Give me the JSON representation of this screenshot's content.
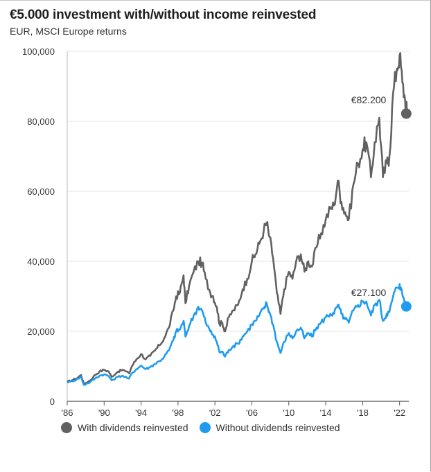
{
  "chart_data": {
    "type": "line",
    "title": "€5.000 investment with/without income reinvested",
    "subtitle": "EUR, MSCI Europe returns",
    "xlabel": "",
    "ylabel": "",
    "xlim": [
      1986,
      2023
    ],
    "ylim": [
      0,
      100000
    ],
    "grid": "horizontal",
    "yticks": [
      0,
      20000,
      40000,
      60000,
      80000,
      100000
    ],
    "ytick_labels": [
      "0",
      "20,000",
      "40,000",
      "60,000",
      "80,000",
      "100,000"
    ],
    "xticks": [
      1986,
      1990,
      1994,
      1998,
      2002,
      2006,
      2010,
      2014,
      2018,
      2022
    ],
    "xtick_labels": [
      "'86",
      "'90",
      "'94",
      "'98",
      "'02",
      "'06",
      "'10",
      "'14",
      "'18",
      "'22"
    ],
    "legend_position": "bottom",
    "series": [
      {
        "name": "With dividends reinvested",
        "color": "#616161",
        "end_label": "€82.200",
        "end_value": 82200,
        "points": [
          [
            1986.0,
            5500
          ],
          [
            1986.5,
            6000
          ],
          [
            1987.0,
            6500
          ],
          [
            1987.5,
            7500
          ],
          [
            1987.8,
            5000
          ],
          [
            1988.5,
            6000
          ],
          [
            1989.0,
            7500
          ],
          [
            1989.5,
            8500
          ],
          [
            1990.0,
            9000
          ],
          [
            1990.5,
            8500
          ],
          [
            1990.8,
            7000
          ],
          [
            1991.5,
            8500
          ],
          [
            1992.0,
            9000
          ],
          [
            1992.7,
            8000
          ],
          [
            1993.0,
            10000
          ],
          [
            1993.5,
            12000
          ],
          [
            1994.0,
            13500
          ],
          [
            1994.5,
            12000
          ],
          [
            1995.0,
            13000
          ],
          [
            1995.5,
            14500
          ],
          [
            1996.0,
            16000
          ],
          [
            1996.5,
            18000
          ],
          [
            1997.0,
            21000
          ],
          [
            1997.5,
            26000
          ],
          [
            1997.8,
            30000
          ],
          [
            1998.2,
            31000
          ],
          [
            1998.6,
            36000
          ],
          [
            1998.8,
            28000
          ],
          [
            1999.2,
            33000
          ],
          [
            1999.7,
            37000
          ],
          [
            2000.2,
            40000
          ],
          [
            2000.6,
            39500
          ],
          [
            2001.0,
            35000
          ],
          [
            2001.5,
            31000
          ],
          [
            2001.8,
            30000
          ],
          [
            2002.2,
            27000
          ],
          [
            2002.5,
            22000
          ],
          [
            2002.8,
            22500
          ],
          [
            2003.1,
            20000
          ],
          [
            2003.5,
            24000
          ],
          [
            2004.0,
            26000
          ],
          [
            2004.5,
            27500
          ],
          [
            2005.0,
            32000
          ],
          [
            2005.5,
            35000
          ],
          [
            2006.0,
            40000
          ],
          [
            2006.4,
            42000
          ],
          [
            2006.8,
            45000
          ],
          [
            2007.3,
            49000
          ],
          [
            2007.6,
            51000
          ],
          [
            2007.9,
            47000
          ],
          [
            2008.3,
            41000
          ],
          [
            2008.7,
            31000
          ],
          [
            2009.1,
            25000
          ],
          [
            2009.5,
            32000
          ],
          [
            2010.0,
            37000
          ],
          [
            2010.4,
            35000
          ],
          [
            2010.8,
            40000
          ],
          [
            2011.3,
            42000
          ],
          [
            2011.7,
            37000
          ],
          [
            2012.1,
            40000
          ],
          [
            2012.5,
            38500
          ],
          [
            2013.0,
            44000
          ],
          [
            2013.5,
            48000
          ],
          [
            2014.0,
            52000
          ],
          [
            2014.5,
            55000
          ],
          [
            2014.9,
            56000
          ],
          [
            2015.3,
            63000
          ],
          [
            2015.7,
            57000
          ],
          [
            2016.1,
            54000
          ],
          [
            2016.5,
            52000
          ],
          [
            2017.0,
            62000
          ],
          [
            2017.5,
            68000
          ],
          [
            2018.0,
            72000
          ],
          [
            2018.4,
            74000
          ],
          [
            2018.9,
            64000
          ],
          [
            2019.3,
            74000
          ],
          [
            2019.8,
            81000
          ],
          [
            2020.2,
            64000
          ],
          [
            2020.6,
            68000
          ],
          [
            2020.9,
            70000
          ],
          [
            2021.3,
            88000
          ],
          [
            2021.7,
            95000
          ],
          [
            2022.0,
            99000
          ],
          [
            2022.3,
            91000
          ],
          [
            2022.6,
            86000
          ],
          [
            2022.8,
            82200
          ]
        ]
      },
      {
        "name": "Without dividends reinvested",
        "color": "#1f9bf0",
        "end_label": "€27.100",
        "end_value": 27100,
        "points": [
          [
            1986.0,
            5500
          ],
          [
            1986.5,
            5800
          ],
          [
            1987.0,
            6200
          ],
          [
            1987.5,
            7000
          ],
          [
            1987.8,
            4700
          ],
          [
            1988.5,
            5500
          ],
          [
            1989.0,
            6500
          ],
          [
            1989.5,
            7300
          ],
          [
            1990.0,
            7700
          ],
          [
            1990.5,
            7200
          ],
          [
            1990.8,
            6000
          ],
          [
            1991.5,
            7000
          ],
          [
            1992.0,
            7300
          ],
          [
            1992.7,
            6500
          ],
          [
            1993.0,
            8000
          ],
          [
            1993.5,
            9200
          ],
          [
            1994.0,
            10200
          ],
          [
            1994.5,
            9200
          ],
          [
            1995.0,
            9800
          ],
          [
            1995.5,
            10700
          ],
          [
            1996.0,
            11500
          ],
          [
            1996.5,
            12700
          ],
          [
            1997.0,
            14500
          ],
          [
            1997.5,
            17500
          ],
          [
            1997.8,
            20000
          ],
          [
            1998.2,
            20500
          ],
          [
            1998.6,
            23000
          ],
          [
            1998.8,
            18500
          ],
          [
            1999.2,
            21500
          ],
          [
            1999.7,
            24500
          ],
          [
            2000.2,
            27000
          ],
          [
            2000.6,
            26000
          ],
          [
            2001.0,
            22500
          ],
          [
            2001.5,
            20000
          ],
          [
            2001.8,
            19000
          ],
          [
            2002.2,
            17000
          ],
          [
            2002.5,
            14000
          ],
          [
            2002.8,
            14200
          ],
          [
            2003.1,
            12800
          ],
          [
            2003.5,
            14700
          ],
          [
            2004.0,
            15800
          ],
          [
            2004.5,
            16500
          ],
          [
            2005.0,
            18500
          ],
          [
            2005.5,
            20000
          ],
          [
            2006.0,
            22000
          ],
          [
            2006.4,
            23000
          ],
          [
            2006.8,
            24500
          ],
          [
            2007.3,
            26500
          ],
          [
            2007.6,
            28000
          ],
          [
            2007.9,
            25500
          ],
          [
            2008.3,
            22000
          ],
          [
            2008.7,
            17000
          ],
          [
            2009.1,
            13800
          ],
          [
            2009.5,
            17000
          ],
          [
            2010.0,
            19500
          ],
          [
            2010.4,
            18000
          ],
          [
            2010.8,
            20000
          ],
          [
            2011.3,
            21000
          ],
          [
            2011.7,
            18000
          ],
          [
            2012.1,
            19500
          ],
          [
            2012.5,
            18500
          ],
          [
            2013.0,
            21000
          ],
          [
            2013.5,
            22500
          ],
          [
            2014.0,
            24000
          ],
          [
            2014.5,
            25000
          ],
          [
            2014.9,
            25000
          ],
          [
            2015.3,
            27500
          ],
          [
            2015.7,
            25000
          ],
          [
            2016.1,
            23500
          ],
          [
            2016.5,
            22500
          ],
          [
            2017.0,
            26000
          ],
          [
            2017.5,
            27500
          ],
          [
            2018.0,
            28500
          ],
          [
            2018.4,
            28500
          ],
          [
            2018.9,
            24500
          ],
          [
            2019.3,
            27500
          ],
          [
            2019.8,
            29000
          ],
          [
            2020.2,
            23000
          ],
          [
            2020.6,
            25000
          ],
          [
            2020.9,
            25500
          ],
          [
            2021.3,
            30000
          ],
          [
            2021.7,
            32500
          ],
          [
            2022.0,
            33500
          ],
          [
            2022.3,
            30500
          ],
          [
            2022.6,
            28500
          ],
          [
            2022.8,
            27100
          ]
        ]
      }
    ]
  }
}
